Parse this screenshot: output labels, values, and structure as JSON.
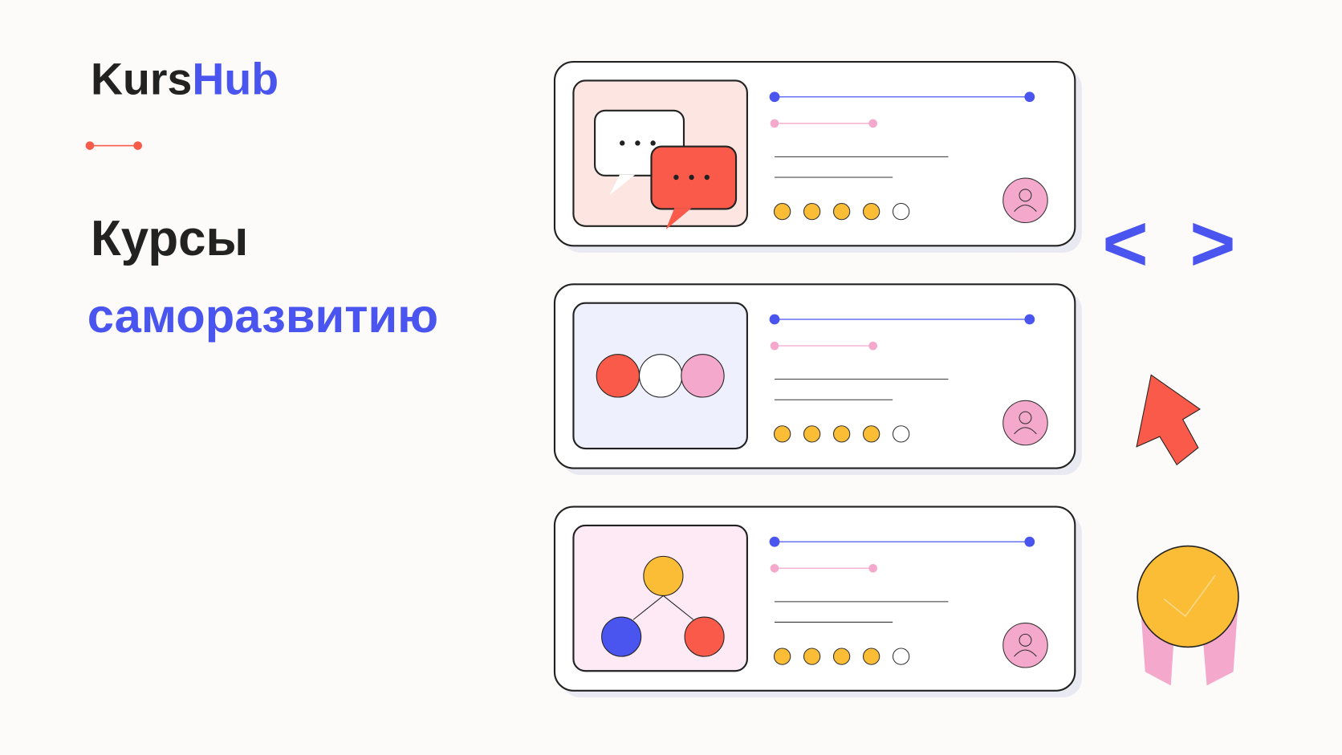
{
  "brand": {
    "part1": "Kurs",
    "part2": "Hub"
  },
  "headline": {
    "line1": "Курсы",
    "line2": "саморазвитию"
  },
  "code_symbol": {
    "open": "<",
    "close": ">"
  },
  "cards": [
    {
      "rating": 4,
      "rating_max": 5
    },
    {
      "rating": 4,
      "rating_max": 5
    },
    {
      "rating": 4,
      "rating_max": 5
    }
  ]
}
